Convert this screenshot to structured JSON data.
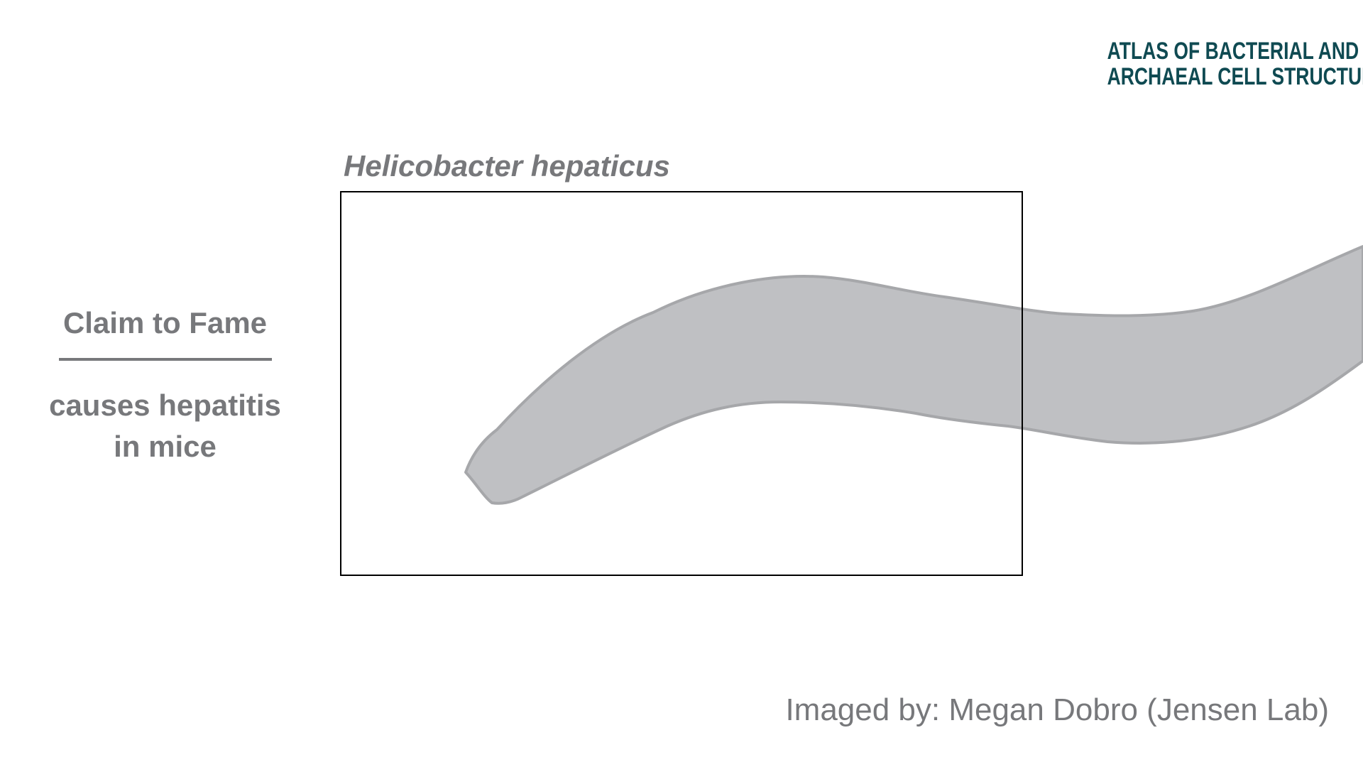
{
  "logo": {
    "line1": "ATLAS OF BACTERIAL AND",
    "line2": "ARCHAEAL CELL STRUCTURE",
    "color": "#0f4a52"
  },
  "species": "Helicobacter hepaticus",
  "claim": {
    "title": "Claim to Fame",
    "text_line1": "causes hepatitis",
    "text_line2": "in mice"
  },
  "credit": "Imaged by: Megan Dobro (Jensen Lab)",
  "colors": {
    "text_gray": "#77787b",
    "cell_fill": "#bfc0c3",
    "cell_stroke": "#a6a7aa",
    "frame": "#000000"
  }
}
